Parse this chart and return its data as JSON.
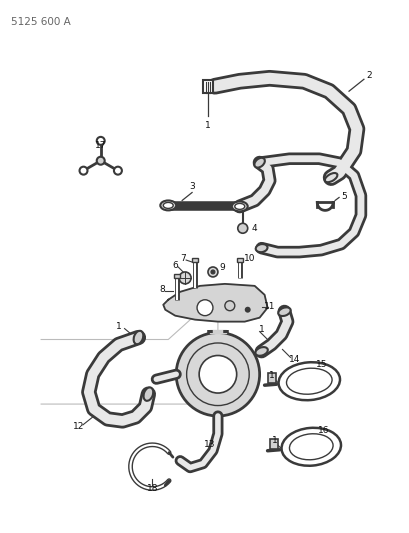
{
  "title_text": "5125 600 A",
  "bg_color": "#ffffff",
  "line_color": "#3a3a3a",
  "label_color": "#111111",
  "label_fontsize": 6.5,
  "figsize": [
    4.1,
    5.33
  ],
  "dpi": 100
}
